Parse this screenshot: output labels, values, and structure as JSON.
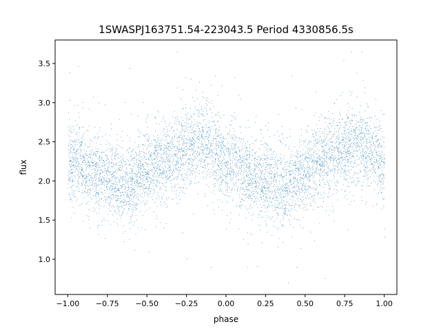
{
  "chart_data": {
    "type": "scatter",
    "title": "1SWASPJ163751.54-223043.5 Period 4330856.5s",
    "xlabel": "phase",
    "ylabel": "flux",
    "xlim": [
      -1.08,
      1.08
    ],
    "ylim": [
      0.55,
      3.8
    ],
    "xticks": [
      -1.0,
      -0.75,
      -0.5,
      -0.25,
      0.0,
      0.25,
      0.5,
      0.75,
      1.0
    ],
    "xtick_labels": [
      "−1.00",
      "−0.75",
      "−0.50",
      "−0.25",
      "0.00",
      "0.25",
      "0.50",
      "0.75",
      "1.00"
    ],
    "yticks": [
      1.0,
      1.5,
      2.0,
      2.5,
      3.0,
      3.5
    ],
    "ytick_labels": [
      "1.0",
      "1.5",
      "2.0",
      "2.5",
      "3.0",
      "3.5"
    ],
    "grid": false,
    "marker_color": "#1f77b4",
    "trend_knots": {
      "phase": [
        -1.0,
        -0.95,
        -0.85,
        -0.75,
        -0.65,
        -0.55,
        -0.45,
        -0.35,
        -0.25,
        -0.15,
        -0.05,
        0.0,
        0.05,
        0.15,
        0.25,
        0.35,
        0.45,
        0.55,
        0.65,
        0.75,
        0.85,
        0.95,
        1.0
      ],
      "flux": [
        2.2,
        2.3,
        2.1,
        2.05,
        1.95,
        2.05,
        2.2,
        2.3,
        2.45,
        2.5,
        2.35,
        2.2,
        2.3,
        2.05,
        2.0,
        1.9,
        2.05,
        2.15,
        2.35,
        2.4,
        2.5,
        2.35,
        2.2
      ]
    },
    "scatter_std": 0.25,
    "point_count": 6000
  }
}
